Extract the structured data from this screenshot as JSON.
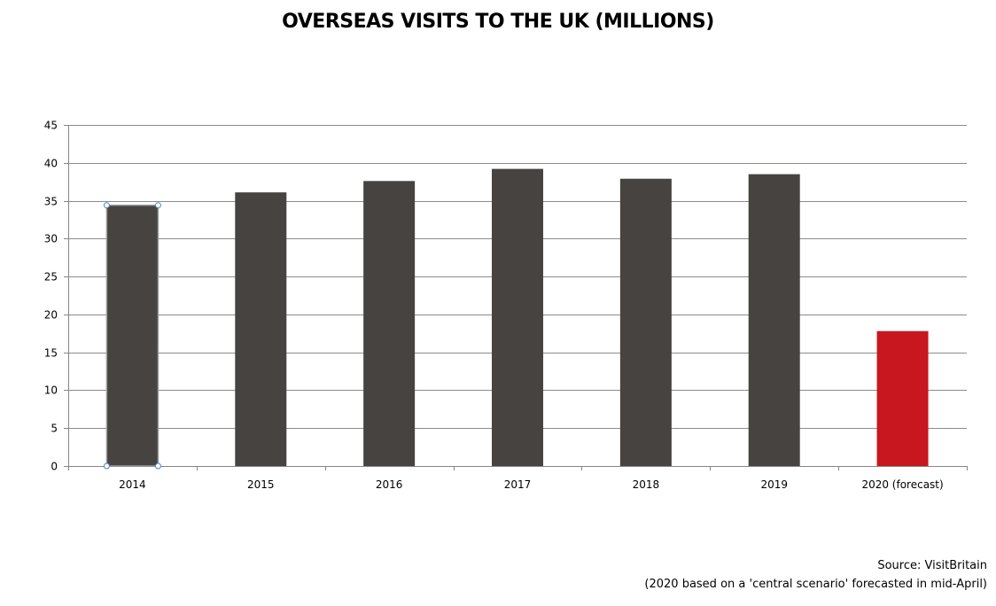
{
  "chart_data": {
    "type": "bar",
    "title": "OVERSEAS VISITS TO THE UK (MILLIONS)",
    "categories": [
      "2014",
      "2015",
      "2016",
      "2017",
      "2018",
      "2019",
      "2020 (forecast)"
    ],
    "values": [
      34.4,
      36.1,
      37.6,
      39.2,
      37.9,
      38.5,
      17.8
    ],
    "colors": [
      "#474340",
      "#474340",
      "#474340",
      "#474340",
      "#474340",
      "#474340",
      "#c8171f"
    ],
    "xlabel": "",
    "ylabel": "",
    "ylim": [
      0,
      45
    ],
    "yticks": [
      0,
      5,
      10,
      15,
      20,
      25,
      30,
      35,
      40,
      45
    ],
    "grid": true,
    "selected_bar": "2014"
  },
  "footer": {
    "source": "Source: VisitBritain",
    "note": "(2020 based on a 'central scenario' forecasted in mid-April)"
  }
}
